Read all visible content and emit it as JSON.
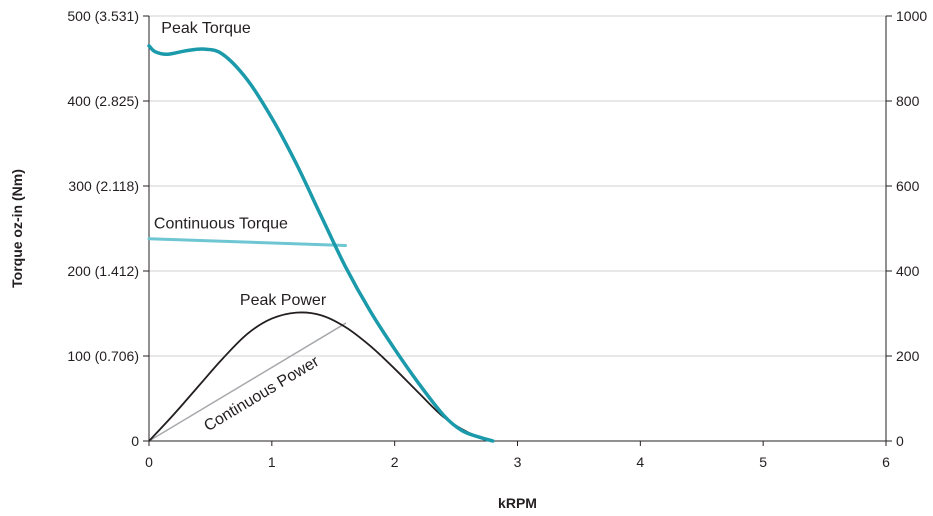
{
  "chart_data": {
    "type": "line",
    "title": "",
    "xlabel": "kRPM",
    "ylabel": "Torque oz-in (Nm)",
    "y2label": "",
    "xlim": [
      0,
      6
    ],
    "ylim": [
      0,
      500
    ],
    "y2lim": [
      0,
      1000
    ],
    "grid": true,
    "legend": "none",
    "x_ticks": [
      "0",
      "1",
      "2",
      "3",
      "4",
      "5",
      "6"
    ],
    "y_ticks": [
      "0",
      "100 (0.706)",
      "200 (1.412)",
      "300 (2.118)",
      "400 (2.825)",
      "500 (3.531)"
    ],
    "y2_ticks": [
      "0",
      "200",
      "400",
      "600",
      "800",
      "1000"
    ],
    "series": [
      {
        "name": "Peak Torque",
        "axis": "left",
        "color": "#1a9aaa",
        "x": [
          0,
          0.05,
          0.15,
          0.3,
          0.45,
          0.6,
          0.8,
          1.0,
          1.2,
          1.4,
          1.6,
          1.8,
          2.0,
          2.2,
          2.4,
          2.55,
          2.7,
          2.8
        ],
        "y": [
          465,
          458,
          455,
          459,
          461,
          455,
          425,
          380,
          326,
          265,
          205,
          153,
          108,
          67,
          30,
          12,
          4,
          0
        ]
      },
      {
        "name": "Continuous Torque",
        "axis": "left",
        "color": "#6ec6d2",
        "x": [
          0,
          1.6
        ],
        "y": [
          238,
          230
        ]
      },
      {
        "name": "Peak Power",
        "axis": "right",
        "color": "#231f20",
        "x": [
          0,
          0.2,
          0.4,
          0.6,
          0.8,
          1.0,
          1.2,
          1.4,
          1.6,
          1.8,
          2.0,
          2.2,
          2.4,
          2.6,
          2.8
        ],
        "y": [
          0,
          62,
          128,
          194,
          252,
          288,
          302,
          296,
          268,
          224,
          170,
          112,
          56,
          20,
          0
        ]
      },
      {
        "name": "Continuous Power",
        "axis": "right",
        "color": "#a7a9ac",
        "x": [
          0,
          1.6
        ],
        "y": [
          0,
          277
        ]
      }
    ],
    "annotations": [
      {
        "text": "Peak Torque",
        "x": 0.1,
        "y": 480,
        "axis": "left",
        "rotate": 0
      },
      {
        "text": "Continuous  Torque",
        "x": 0.04,
        "y": 250,
        "axis": "left",
        "rotate": 0
      },
      {
        "text": "Peak Power",
        "x": 0.74,
        "y": 320,
        "axis": "right",
        "rotate": 0
      },
      {
        "text": "Continuous Power",
        "x": 0.48,
        "y": 22,
        "axis": "right",
        "rotate": -31
      }
    ]
  }
}
